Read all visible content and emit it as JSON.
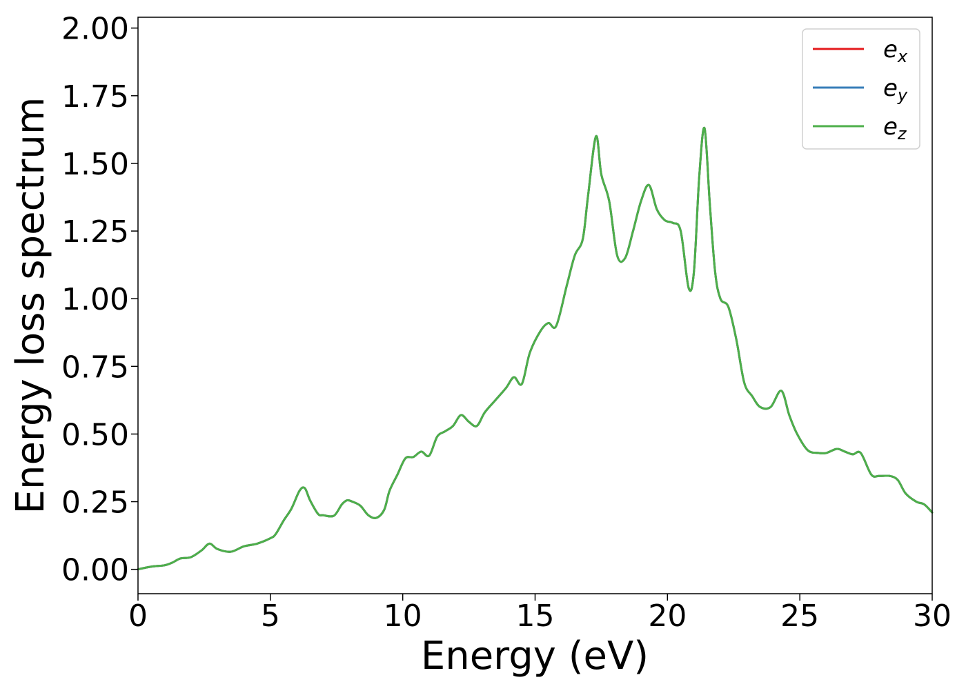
{
  "chart_data": {
    "type": "line",
    "title": "",
    "xlabel": "Energy (eV)",
    "ylabel": "Energy loss spectrum",
    "xlim": [
      0,
      30
    ],
    "ylim": [
      -0.09,
      2.04
    ],
    "xticks": [
      0,
      5,
      10,
      15,
      20,
      25,
      30
    ],
    "xtick_labels": [
      "0",
      "5",
      "10",
      "15",
      "20",
      "25",
      "30"
    ],
    "yticks": [
      0.0,
      0.25,
      0.5,
      0.75,
      1.0,
      1.25,
      1.5,
      1.75,
      2.0
    ],
    "ytick_labels": [
      "0.00",
      "0.25",
      "0.50",
      "0.75",
      "1.00",
      "1.25",
      "1.50",
      "1.75",
      "2.00"
    ],
    "grid": false,
    "legend_position": "top-right",
    "x": [
      0,
      0.5,
      1.0,
      1.3,
      1.6,
      2.0,
      2.4,
      2.7,
      3.0,
      3.5,
      4.0,
      4.5,
      5.0,
      5.2,
      5.5,
      5.8,
      6.1,
      6.3,
      6.5,
      6.8,
      7.0,
      7.4,
      7.7,
      7.9,
      8.1,
      8.4,
      8.7,
      9.0,
      9.3,
      9.5,
      9.8,
      10.1,
      10.4,
      10.7,
      11.0,
      11.3,
      11.6,
      11.9,
      12.2,
      12.5,
      12.8,
      13.1,
      13.5,
      13.9,
      14.2,
      14.5,
      14.8,
      15.2,
      15.5,
      15.8,
      16.2,
      16.5,
      16.8,
      17.0,
      17.3,
      17.5,
      17.8,
      18.1,
      18.4,
      18.7,
      19.0,
      19.3,
      19.6,
      19.9,
      20.2,
      20.5,
      20.8,
      21.0,
      21.2,
      21.4,
      21.6,
      21.8,
      22.0,
      22.3,
      22.6,
      22.9,
      23.2,
      23.5,
      23.9,
      24.3,
      24.6,
      24.9,
      25.3,
      25.7,
      26.0,
      26.4,
      26.7,
      27.0,
      27.3,
      27.7,
      28.0,
      28.4,
      28.7,
      29.0,
      29.4,
      29.7,
      30.0
    ],
    "series": [
      {
        "name": "e_x",
        "label_base": "e",
        "label_sub": "x",
        "color": "#e41a1c",
        "values": [
          0.0,
          0.01,
          0.015,
          0.025,
          0.04,
          0.045,
          0.07,
          0.095,
          0.075,
          0.065,
          0.085,
          0.095,
          0.115,
          0.13,
          0.18,
          0.225,
          0.29,
          0.3,
          0.255,
          0.205,
          0.2,
          0.198,
          0.24,
          0.255,
          0.25,
          0.235,
          0.2,
          0.19,
          0.22,
          0.29,
          0.35,
          0.41,
          0.415,
          0.435,
          0.42,
          0.49,
          0.51,
          0.53,
          0.57,
          0.545,
          0.53,
          0.58,
          0.625,
          0.67,
          0.71,
          0.685,
          0.8,
          0.88,
          0.91,
          0.9,
          1.05,
          1.16,
          1.22,
          1.38,
          1.6,
          1.46,
          1.36,
          1.16,
          1.15,
          1.25,
          1.36,
          1.42,
          1.33,
          1.29,
          1.28,
          1.25,
          1.04,
          1.1,
          1.45,
          1.63,
          1.35,
          1.1,
          1.0,
          0.97,
          0.85,
          0.69,
          0.64,
          0.6,
          0.6,
          0.66,
          0.57,
          0.5,
          0.44,
          0.43,
          0.43,
          0.445,
          0.435,
          0.425,
          0.43,
          0.35,
          0.345,
          0.345,
          0.33,
          0.28,
          0.25,
          0.24,
          0.21
        ]
      },
      {
        "name": "e_y",
        "label_base": "e",
        "label_sub": "y",
        "color": "#377eb8",
        "values": [
          0.0,
          0.01,
          0.015,
          0.025,
          0.04,
          0.045,
          0.07,
          0.095,
          0.075,
          0.065,
          0.085,
          0.095,
          0.115,
          0.13,
          0.18,
          0.225,
          0.29,
          0.3,
          0.255,
          0.205,
          0.2,
          0.198,
          0.24,
          0.255,
          0.25,
          0.235,
          0.2,
          0.19,
          0.22,
          0.29,
          0.35,
          0.41,
          0.415,
          0.435,
          0.42,
          0.49,
          0.51,
          0.53,
          0.57,
          0.545,
          0.53,
          0.58,
          0.625,
          0.67,
          0.71,
          0.685,
          0.8,
          0.88,
          0.91,
          0.9,
          1.05,
          1.16,
          1.22,
          1.38,
          1.6,
          1.46,
          1.36,
          1.16,
          1.15,
          1.25,
          1.36,
          1.42,
          1.33,
          1.29,
          1.28,
          1.25,
          1.04,
          1.1,
          1.45,
          1.63,
          1.35,
          1.1,
          1.0,
          0.97,
          0.85,
          0.69,
          0.64,
          0.6,
          0.6,
          0.66,
          0.57,
          0.5,
          0.44,
          0.43,
          0.43,
          0.445,
          0.435,
          0.425,
          0.43,
          0.35,
          0.345,
          0.345,
          0.33,
          0.28,
          0.25,
          0.24,
          0.21
        ]
      },
      {
        "name": "e_z",
        "label_base": "e",
        "label_sub": "z",
        "color": "#4daf4a",
        "values": [
          0.0,
          0.01,
          0.015,
          0.025,
          0.04,
          0.045,
          0.07,
          0.095,
          0.075,
          0.065,
          0.085,
          0.095,
          0.115,
          0.13,
          0.18,
          0.225,
          0.29,
          0.3,
          0.255,
          0.205,
          0.2,
          0.198,
          0.24,
          0.255,
          0.25,
          0.235,
          0.2,
          0.19,
          0.22,
          0.29,
          0.35,
          0.41,
          0.415,
          0.435,
          0.42,
          0.49,
          0.51,
          0.53,
          0.57,
          0.545,
          0.53,
          0.58,
          0.625,
          0.67,
          0.71,
          0.685,
          0.8,
          0.88,
          0.91,
          0.9,
          1.05,
          1.16,
          1.22,
          1.38,
          1.6,
          1.46,
          1.36,
          1.16,
          1.15,
          1.25,
          1.36,
          1.42,
          1.33,
          1.29,
          1.28,
          1.25,
          1.04,
          1.1,
          1.45,
          1.63,
          1.35,
          1.1,
          1.0,
          0.97,
          0.85,
          0.69,
          0.64,
          0.6,
          0.6,
          0.66,
          0.57,
          0.5,
          0.44,
          0.43,
          0.43,
          0.445,
          0.435,
          0.425,
          0.43,
          0.35,
          0.345,
          0.345,
          0.33,
          0.28,
          0.25,
          0.24,
          0.21
        ]
      }
    ]
  }
}
